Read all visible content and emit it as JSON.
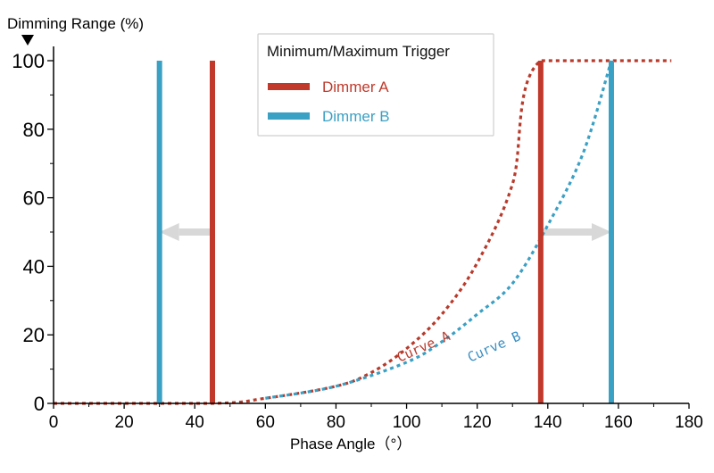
{
  "chart_data": {
    "type": "line",
    "xlabel": "Phase Angle（°）",
    "ylabel": "Dimming Range (%)",
    "xlim": [
      0,
      180
    ],
    "ylim": [
      0,
      100
    ],
    "x_ticks": [
      0,
      20,
      40,
      60,
      80,
      100,
      120,
      140,
      160,
      180
    ],
    "y_ticks": [
      0,
      20,
      40,
      60,
      80,
      100
    ],
    "legend": {
      "title": "Minimum/Maximum Trigger",
      "placement": "top-center",
      "entries": [
        {
          "label": "Dimmer A",
          "color": "#c0392b"
        },
        {
          "label": "Dimmer B",
          "color": "#3aa0c4"
        }
      ]
    },
    "series": [
      {
        "name": "Curve A",
        "color": "#b83a2b",
        "style": "dotted",
        "x": [
          0,
          45,
          60,
          80,
          90,
          100,
          110,
          120,
          130,
          138,
          175
        ],
        "y": [
          0,
          0,
          1.5,
          5,
          9,
          16,
          26,
          41,
          64,
          100,
          100
        ]
      },
      {
        "name": "Curve B",
        "color": "#3aa0c4",
        "style": "dotted",
        "x": [
          60,
          80,
          100,
          110,
          120,
          130,
          140,
          150,
          158
        ],
        "y": [
          1.5,
          5,
          12,
          18,
          26,
          35,
          52,
          73,
          100
        ]
      }
    ],
    "trigger_lines": [
      {
        "x": 30,
        "color": "#3aa0c4",
        "dimmer": "Dimmer B",
        "type": "minimum"
      },
      {
        "x": 45,
        "color": "#c0392b",
        "dimmer": "Dimmer A",
        "type": "minimum"
      },
      {
        "x": 138,
        "color": "#c0392b",
        "dimmer": "Dimmer A",
        "type": "maximum"
      },
      {
        "x": 158,
        "color": "#3aa0c4",
        "dimmer": "Dimmer B",
        "type": "maximum"
      }
    ],
    "arrows": [
      {
        "from_x": 45,
        "to_x": 30,
        "y": 50,
        "color": "#d8d8d8"
      },
      {
        "from_x": 138,
        "to_x": 158,
        "y": 50,
        "color": "#d8d8d8"
      }
    ],
    "annotations": [
      {
        "text": "Curve A",
        "x": 98,
        "y": 12,
        "color": "#b83a2b"
      },
      {
        "text": "Curve B",
        "x": 118,
        "y": 12,
        "color": "#3a8fc4"
      }
    ]
  }
}
